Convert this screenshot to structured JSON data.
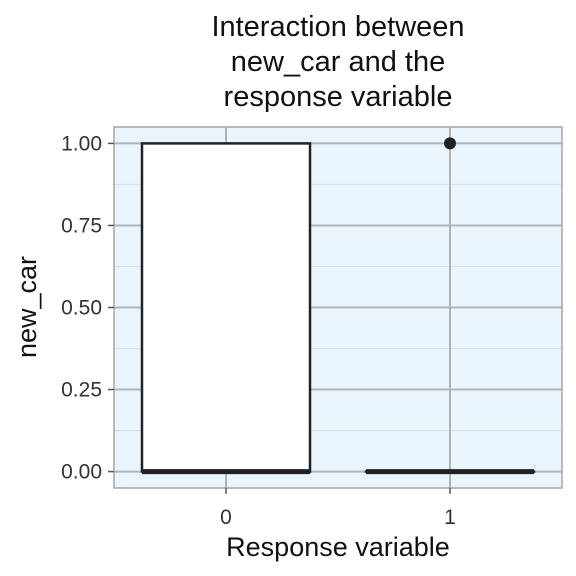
{
  "chart_data": {
    "type": "boxplot",
    "title_lines": [
      "Interaction between",
      "new_car and the",
      "response variable"
    ],
    "xlabel": "Response variable",
    "ylabel": "new_car",
    "categories": [
      "0",
      "1"
    ],
    "yticks": [
      "0.00",
      "0.25",
      "0.50",
      "0.75",
      "1.00"
    ],
    "ylim": [
      -0.05,
      1.05
    ],
    "grid": true,
    "boxes": [
      {
        "category": "0",
        "min": 0,
        "q1": 0,
        "median": 0,
        "q3": 1,
        "max": 1,
        "outliers": []
      },
      {
        "category": "1",
        "min": 0,
        "q1": 0,
        "median": 0,
        "q3": 0,
        "max": 0,
        "outliers": [
          1
        ]
      }
    ],
    "colors": {
      "panel_background": "#EAF4FD",
      "grid": "#B3B3B3",
      "panel_border": "#A6A6A6",
      "box_fill": "#FFFFFF",
      "box_line": "#222222"
    }
  }
}
